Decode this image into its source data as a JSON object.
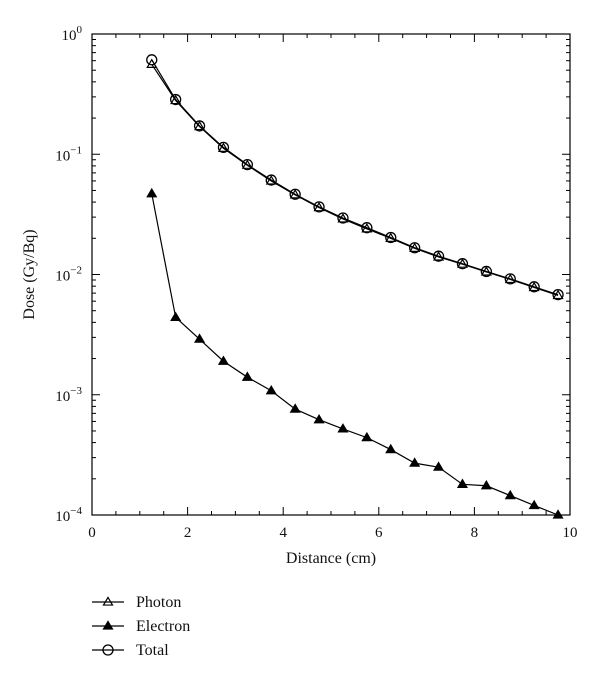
{
  "chart_data": {
    "type": "line",
    "title": "",
    "xlabel": "Distance (cm)",
    "ylabel": "Dose (Gy/Bq)",
    "xlim": [
      0,
      10
    ],
    "ylim": [
      0.0001,
      1
    ],
    "yscale": "log",
    "grid": false,
    "legend_position": "bottom-left, below plot",
    "x_ticks": [
      0,
      2,
      4,
      6,
      8,
      10
    ],
    "x_tick_labels": [
      "0",
      "2",
      "4",
      "6",
      "8",
      "10"
    ],
    "y_ticks": [
      0.0001,
      0.001,
      0.01,
      0.1,
      1
    ],
    "y_tick_labels": [
      {
        "base": "10",
        "exp": "−4"
      },
      {
        "base": "10",
        "exp": "−3"
      },
      {
        "base": "10",
        "exp": "−2"
      },
      {
        "base": "10",
        "exp": "−1"
      },
      {
        "base": "10",
        "exp": "0"
      }
    ],
    "x": [
      1.25,
      1.75,
      2.25,
      2.75,
      3.25,
      3.75,
      4.25,
      4.75,
      5.25,
      5.75,
      6.25,
      6.75,
      7.25,
      7.75,
      8.25,
      8.75,
      9.25,
      9.75
    ],
    "series": [
      {
        "name": "Photon",
        "marker": "open-triangle",
        "color": "#000000",
        "values": [
          0.56,
          0.28,
          0.17,
          0.112,
          0.081,
          0.06,
          0.046,
          0.036,
          0.029,
          0.024,
          0.02,
          0.0165,
          0.014,
          0.0122,
          0.0105,
          0.0091,
          0.0078,
          0.0067
        ]
      },
      {
        "name": "Electron",
        "marker": "filled-triangle",
        "color": "#000000",
        "values": [
          0.047,
          0.0044,
          0.0029,
          0.0019,
          0.0014,
          0.00108,
          0.00076,
          0.00062,
          0.00052,
          0.00044,
          0.00035,
          0.00027,
          0.00025,
          0.00018,
          0.000175,
          0.000145,
          0.00012,
          0.0001
        ]
      },
      {
        "name": "Total",
        "marker": "open-circle",
        "color": "#000000",
        "values": [
          0.61,
          0.285,
          0.172,
          0.114,
          0.082,
          0.061,
          0.0465,
          0.0365,
          0.0295,
          0.0245,
          0.0203,
          0.0167,
          0.0142,
          0.0123,
          0.0106,
          0.0092,
          0.0079,
          0.0068
        ]
      }
    ]
  }
}
